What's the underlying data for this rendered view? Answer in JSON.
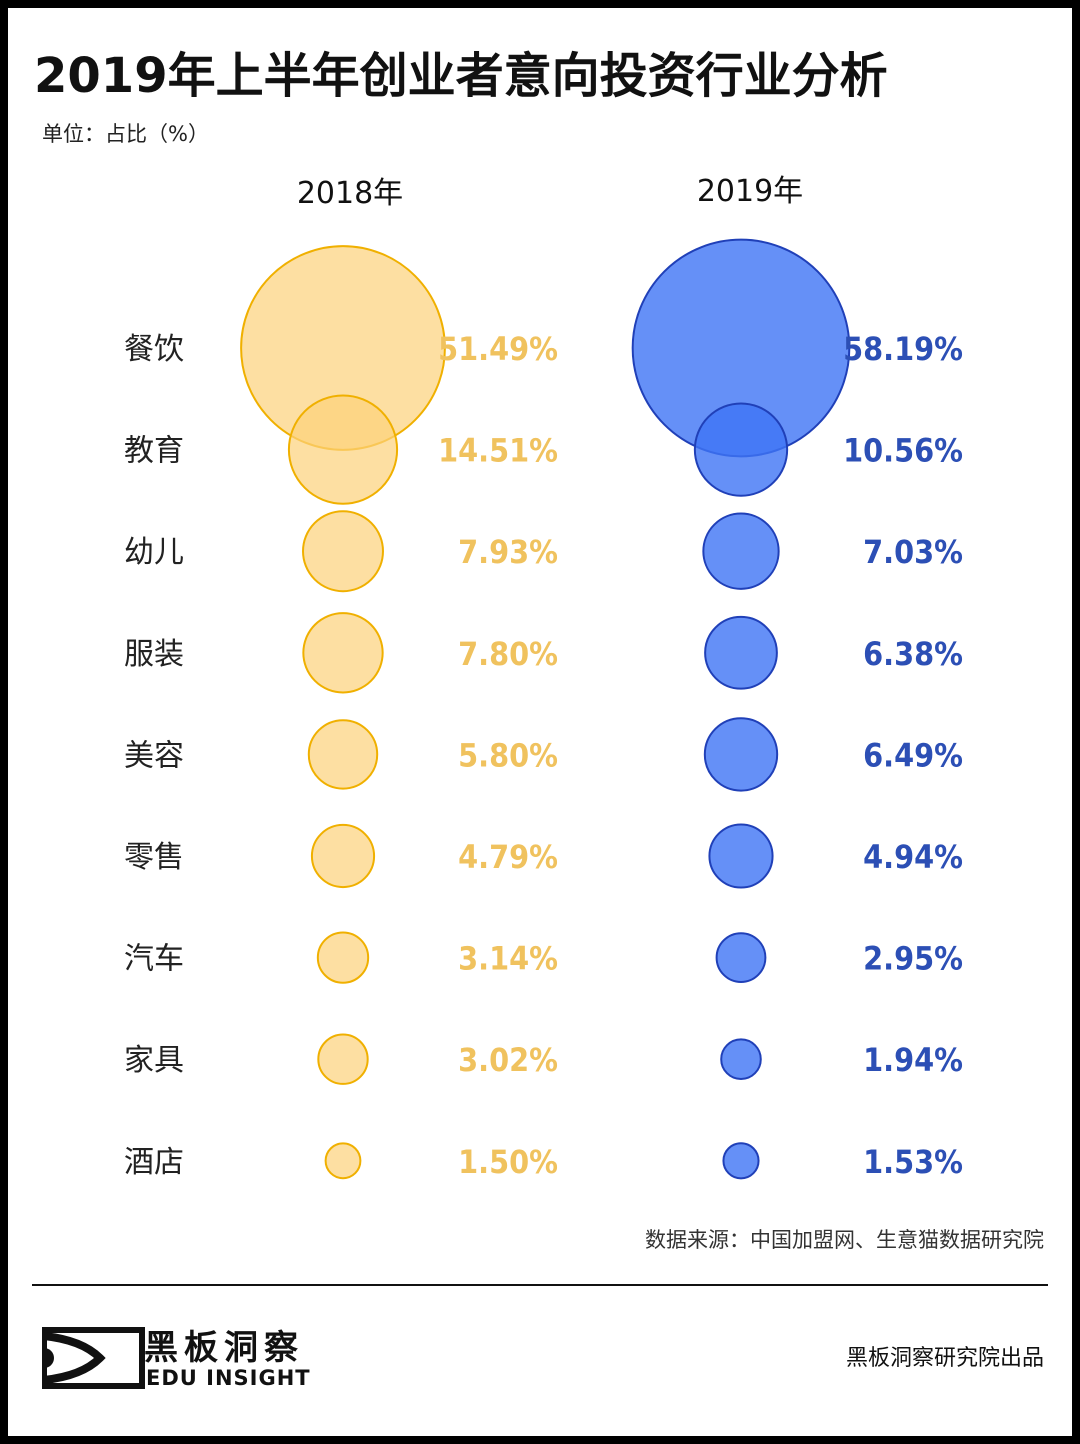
{
  "title": "2019年上半年创业者意向投资行业分析",
  "unit": "单位：占比（%）",
  "source": "数据来源：中国加盟网、生意猫数据研究院",
  "brand": {
    "cn": "黑板洞察",
    "en": "EDU INSIGHT"
  },
  "credit": "黑板洞察研究院出品",
  "chart_data": {
    "type": "bubble",
    "categories": [
      "餐饮",
      "教育",
      "幼儿",
      "服装",
      "美容",
      "零售",
      "汽车",
      "家具",
      "酒店"
    ],
    "series": [
      {
        "name": "2018年",
        "values": [
          51.49,
          14.51,
          7.93,
          7.8,
          5.8,
          4.79,
          3.14,
          3.02,
          1.5
        ],
        "labels": [
          "51.49%",
          "14.51%",
          "7.93%",
          "7.80%",
          "5.80%",
          "4.79%",
          "3.14%",
          "3.02%",
          "1.50%"
        ],
        "fill": "#fcd27a",
        "stroke": "#f0b000",
        "text_color": "#f0c25e"
      },
      {
        "name": "2019年",
        "values": [
          58.19,
          10.56,
          7.03,
          6.38,
          6.49,
          4.94,
          2.95,
          1.94,
          1.53
        ],
        "labels": [
          "58.19%",
          "10.56%",
          "7.03%",
          "6.38%",
          "6.49%",
          "4.94%",
          "2.95%",
          "1.94%",
          "1.53%"
        ],
        "fill": "#3f74f5",
        "stroke": "#2040b8",
        "text_color": "#2c4fb5"
      }
    ]
  }
}
